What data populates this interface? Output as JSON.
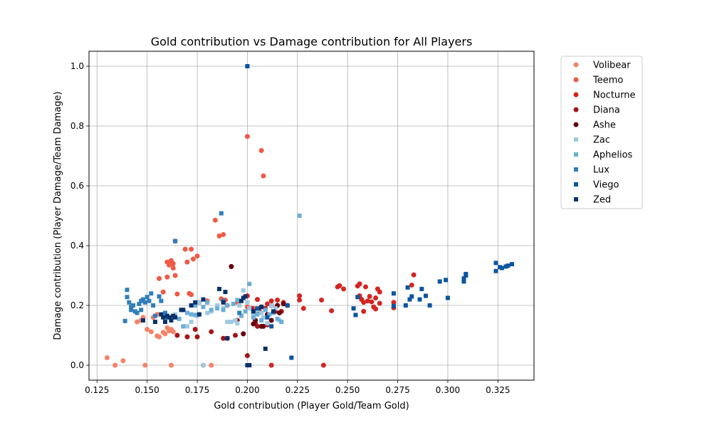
{
  "chart_data": {
    "type": "scatter",
    "title": "Gold contribution vs Damage contribution for All Players",
    "xlabel": "Gold contribution (Player Gold/Team Gold)",
    "ylabel": "Damage contribution (Player Damage/Team Damage)",
    "xlim": [
      0.121,
      0.343
    ],
    "ylim": [
      -0.05,
      1.05
    ],
    "xticks": [
      "0.125",
      "0.150",
      "0.175",
      "0.200",
      "0.225",
      "0.250",
      "0.275",
      "0.300",
      "0.325"
    ],
    "yticks": [
      "0.0",
      "0.2",
      "0.4",
      "0.6",
      "0.8",
      "1.0"
    ],
    "grid": true,
    "legend_position": "outside right, top",
    "series": [
      {
        "name": "Volibear",
        "color": "#f4836a",
        "marker": "circle",
        "points": [
          [
            0.13,
            0.025
          ],
          [
            0.134,
            0.0
          ],
          [
            0.138,
            0.015
          ],
          [
            0.149,
            0.0
          ],
          [
            0.145,
            0.145
          ],
          [
            0.147,
            0.15
          ],
          [
            0.15,
            0.12
          ],
          [
            0.152,
            0.112
          ],
          [
            0.155,
            0.098
          ],
          [
            0.156,
            0.095
          ],
          [
            0.158,
            0.11
          ],
          [
            0.159,
            0.105
          ],
          [
            0.16,
            0.125
          ],
          [
            0.161,
            0.115
          ],
          [
            0.162,
            0.12
          ],
          [
            0.163,
            0.112
          ],
          [
            0.153,
            0.16
          ],
          [
            0.155,
            0.17
          ],
          [
            0.148,
            0.16
          ],
          [
            0.162,
            0.0
          ],
          [
            0.178,
            0.0
          ],
          [
            0.182,
            0.0
          ]
        ]
      },
      {
        "name": "Teemo",
        "color": "#ef5a46",
        "marker": "circle",
        "points": [
          [
            0.2,
            0.765
          ],
          [
            0.207,
            0.718
          ],
          [
            0.208,
            0.633
          ],
          [
            0.184,
            0.485
          ],
          [
            0.186,
            0.432
          ],
          [
            0.188,
            0.437
          ],
          [
            0.164,
            0.415
          ],
          [
            0.169,
            0.388
          ],
          [
            0.172,
            0.388
          ],
          [
            0.175,
            0.365
          ],
          [
            0.173,
            0.355
          ],
          [
            0.17,
            0.345
          ],
          [
            0.16,
            0.345
          ],
          [
            0.162,
            0.35
          ],
          [
            0.163,
            0.34
          ],
          [
            0.161,
            0.335
          ],
          [
            0.163,
            0.325
          ],
          [
            0.164,
            0.3
          ],
          [
            0.16,
            0.295
          ],
          [
            0.156,
            0.29
          ],
          [
            0.158,
            0.245
          ],
          [
            0.165,
            0.238
          ],
          [
            0.171,
            0.24
          ],
          [
            0.172,
            0.236
          ],
          [
            0.176,
            0.21
          ],
          [
            0.18,
            0.215
          ],
          [
            0.187,
            0.222
          ],
          [
            0.189,
            0.218
          ],
          [
            0.195,
            0.21
          ],
          [
            0.19,
            0.2
          ],
          [
            0.2,
            0.195
          ],
          [
            0.203,
            0.19
          ]
        ]
      },
      {
        "name": "Nocturne",
        "color": "#d42522",
        "marker": "circle",
        "points": [
          [
            0.2,
            0.232
          ],
          [
            0.205,
            0.22
          ],
          [
            0.21,
            0.205
          ],
          [
            0.212,
            0.215
          ],
          [
            0.215,
            0.218
          ],
          [
            0.218,
            0.21
          ],
          [
            0.22,
            0.2
          ],
          [
            0.226,
            0.232
          ],
          [
            0.228,
            0.19
          ],
          [
            0.237,
            0.218
          ],
          [
            0.242,
            0.182
          ],
          [
            0.245,
            0.262
          ],
          [
            0.246,
            0.266
          ],
          [
            0.248,
            0.255
          ],
          [
            0.255,
            0.265
          ],
          [
            0.256,
            0.272
          ],
          [
            0.256,
            0.232
          ],
          [
            0.257,
            0.22
          ],
          [
            0.258,
            0.21
          ],
          [
            0.258,
            0.18
          ],
          [
            0.259,
            0.262
          ],
          [
            0.26,
            0.215
          ],
          [
            0.261,
            0.23
          ],
          [
            0.262,
            0.212
          ],
          [
            0.263,
            0.195
          ],
          [
            0.264,
            0.225
          ],
          [
            0.265,
            0.255
          ],
          [
            0.266,
            0.245
          ],
          [
            0.266,
            0.207
          ],
          [
            0.264,
            0.188
          ],
          [
            0.273,
            0.21
          ],
          [
            0.273,
            0.192
          ],
          [
            0.282,
            0.268
          ],
          [
            0.283,
            0.302
          ],
          [
            0.238,
            0.0
          ],
          [
            0.212,
            0.0
          ],
          [
            0.226,
            0.218
          ]
        ]
      },
      {
        "name": "Diana",
        "color": "#a3161c",
        "marker": "circle",
        "points": [
          [
            0.165,
            0.1
          ],
          [
            0.17,
            0.095
          ],
          [
            0.174,
            0.12
          ],
          [
            0.175,
            0.095
          ],
          [
            0.182,
            0.112
          ],
          [
            0.188,
            0.09
          ],
          [
            0.19,
            0.09
          ],
          [
            0.192,
            0.33
          ],
          [
            0.194,
            0.1
          ],
          [
            0.195,
            0.15
          ],
          [
            0.198,
            0.105
          ],
          [
            0.2,
            0.032
          ],
          [
            0.202,
            0.19
          ],
          [
            0.204,
            0.14
          ],
          [
            0.205,
            0.13
          ],
          [
            0.206,
            0.18
          ],
          [
            0.207,
            0.195
          ],
          [
            0.209,
            0.19
          ],
          [
            0.21,
            0.135
          ],
          [
            0.212,
            0.2
          ],
          [
            0.214,
            0.18
          ],
          [
            0.215,
            0.2
          ],
          [
            0.217,
            0.18
          ]
        ]
      },
      {
        "name": "Ashe",
        "color": "#67000d",
        "marker": "circle",
        "points": [
          [
            0.192,
            0.33
          ],
          [
            0.198,
            0.105
          ],
          [
            0.203,
            0.138
          ],
          [
            0.205,
            0.185
          ],
          [
            0.207,
            0.13
          ],
          [
            0.208,
            0.13
          ],
          [
            0.21,
            0.17
          ],
          [
            0.212,
            0.15
          ],
          [
            0.215,
            0.2
          ],
          [
            0.216,
            0.175
          ],
          [
            0.218,
            0.205
          ],
          [
            0.204,
            0.15
          ]
        ]
      },
      {
        "name": "Zac",
        "color": "#9ecae1",
        "marker": "square",
        "points": [
          [
            0.17,
            0.13
          ],
          [
            0.172,
            0.145
          ],
          [
            0.175,
            0.165
          ],
          [
            0.176,
            0.21
          ],
          [
            0.178,
            0.0
          ],
          [
            0.18,
            0.175
          ],
          [
            0.182,
            0.18
          ],
          [
            0.185,
            0.2
          ],
          [
            0.188,
            0.19
          ],
          [
            0.19,
            0.145
          ],
          [
            0.192,
            0.145
          ],
          [
            0.194,
            0.15
          ],
          [
            0.195,
            0.14
          ],
          [
            0.196,
            0.2
          ],
          [
            0.198,
            0.25
          ],
          [
            0.2,
            0.21
          ],
          [
            0.201,
            0.19
          ],
          [
            0.203,
            0.17
          ],
          [
            0.205,
            0.185
          ],
          [
            0.207,
            0.175
          ],
          [
            0.208,
            0.16
          ],
          [
            0.21,
            0.14
          ],
          [
            0.212,
            0.2
          ],
          [
            0.214,
            0.19
          ],
          [
            0.216,
            0.15
          ],
          [
            0.164,
            0.17
          ]
        ]
      },
      {
        "name": "Aphelios",
        "color": "#6baed6",
        "marker": "square",
        "points": [
          [
            0.168,
            0.13
          ],
          [
            0.17,
            0.175
          ],
          [
            0.172,
            0.17
          ],
          [
            0.174,
            0.168
          ],
          [
            0.178,
            0.195
          ],
          [
            0.18,
            0.21
          ],
          [
            0.182,
            0.185
          ],
          [
            0.185,
            0.19
          ],
          [
            0.188,
            0.185
          ],
          [
            0.19,
            0.2
          ],
          [
            0.193,
            0.205
          ],
          [
            0.195,
            0.218
          ],
          [
            0.197,
            0.165
          ],
          [
            0.199,
            0.18
          ],
          [
            0.201,
            0.272
          ],
          [
            0.203,
            0.16
          ],
          [
            0.205,
            0.17
          ],
          [
            0.207,
            0.15
          ],
          [
            0.209,
            0.185
          ],
          [
            0.211,
            0.17
          ],
          [
            0.213,
            0.175
          ],
          [
            0.215,
            0.155
          ],
          [
            0.217,
            0.145
          ],
          [
            0.226,
            0.5
          ],
          [
            0.166,
            0.155
          ],
          [
            0.174,
            0.2
          ]
        ]
      },
      {
        "name": "Lux",
        "color": "#2f7ebc",
        "marker": "square",
        "points": [
          [
            0.139,
            0.148
          ],
          [
            0.14,
            0.252
          ],
          [
            0.14,
            0.228
          ],
          [
            0.141,
            0.21
          ],
          [
            0.142,
            0.195
          ],
          [
            0.142,
            0.185
          ],
          [
            0.143,
            0.2
          ],
          [
            0.144,
            0.18
          ],
          [
            0.145,
            0.175
          ],
          [
            0.146,
            0.205
          ],
          [
            0.147,
            0.215
          ],
          [
            0.147,
            0.185
          ],
          [
            0.148,
            0.22
          ],
          [
            0.149,
            0.21
          ],
          [
            0.15,
            0.228
          ],
          [
            0.151,
            0.215
          ],
          [
            0.152,
            0.24
          ],
          [
            0.153,
            0.2
          ],
          [
            0.154,
            0.165
          ],
          [
            0.156,
            0.23
          ],
          [
            0.157,
            0.215
          ],
          [
            0.159,
            0.175
          ],
          [
            0.16,
            0.16
          ],
          [
            0.164,
            0.415
          ],
          [
            0.187,
            0.508
          ],
          [
            0.2,
            1.0
          ],
          [
            0.188,
            0.215
          ],
          [
            0.196,
            0.175
          ]
        ]
      },
      {
        "name": "Viego",
        "color": "#0b559f",
        "marker": "square",
        "points": [
          [
            0.2,
            1.0
          ],
          [
            0.205,
            0.19
          ],
          [
            0.21,
            0.16
          ],
          [
            0.212,
            0.13
          ],
          [
            0.22,
            0.2
          ],
          [
            0.222,
            0.025
          ],
          [
            0.253,
            0.19
          ],
          [
            0.254,
            0.168
          ],
          [
            0.255,
            0.228
          ],
          [
            0.273,
            0.24
          ],
          [
            0.273,
            0.198
          ],
          [
            0.279,
            0.2
          ],
          [
            0.28,
            0.26
          ],
          [
            0.281,
            0.22
          ],
          [
            0.282,
            0.23
          ],
          [
            0.286,
            0.22
          ],
          [
            0.287,
            0.255
          ],
          [
            0.289,
            0.232
          ],
          [
            0.291,
            0.2
          ],
          [
            0.296,
            0.28
          ],
          [
            0.299,
            0.285
          ],
          [
            0.3,
            0.225
          ],
          [
            0.308,
            0.28
          ],
          [
            0.308,
            0.29
          ],
          [
            0.309,
            0.3
          ],
          [
            0.309,
            0.305
          ],
          [
            0.324,
            0.342
          ],
          [
            0.324,
            0.315
          ],
          [
            0.326,
            0.328
          ],
          [
            0.327,
            0.325
          ],
          [
            0.329,
            0.33
          ],
          [
            0.33,
            0.333
          ],
          [
            0.332,
            0.338
          ]
        ]
      },
      {
        "name": "Zed",
        "color": "#08306b",
        "marker": "square",
        "points": [
          [
            0.148,
            0.15
          ],
          [
            0.154,
            0.145
          ],
          [
            0.157,
            0.17
          ],
          [
            0.158,
            0.16
          ],
          [
            0.159,
            0.145
          ],
          [
            0.16,
            0.165
          ],
          [
            0.161,
            0.16
          ],
          [
            0.162,
            0.15
          ],
          [
            0.163,
            0.165
          ],
          [
            0.164,
            0.16
          ],
          [
            0.167,
            0.185
          ],
          [
            0.172,
            0.2
          ],
          [
            0.174,
            0.21
          ],
          [
            0.176,
            0.17
          ],
          [
            0.178,
            0.22
          ],
          [
            0.186,
            0.255
          ],
          [
            0.188,
            0.21
          ],
          [
            0.189,
            0.245
          ],
          [
            0.19,
            0.09
          ],
          [
            0.197,
            0.215
          ],
          [
            0.198,
            0.225
          ],
          [
            0.199,
            0.23
          ],
          [
            0.2,
            0.0
          ],
          [
            0.201,
            0.0
          ],
          [
            0.203,
            0.18
          ],
          [
            0.207,
            0.195
          ],
          [
            0.209,
            0.055
          ],
          [
            0.213,
            0.18
          ],
          [
            0.168,
            0.185
          ]
        ]
      }
    ]
  }
}
